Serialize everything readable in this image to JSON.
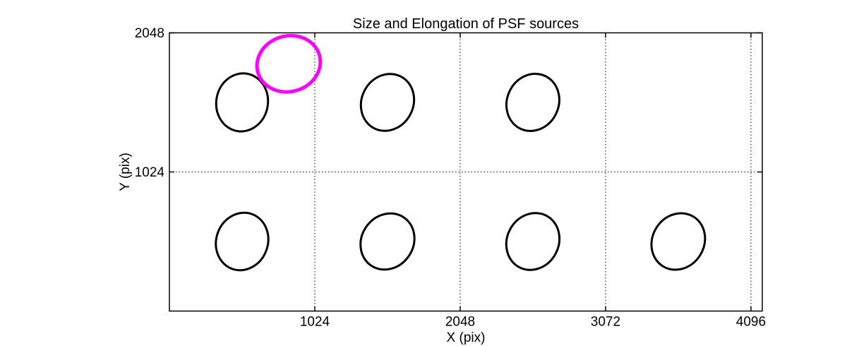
{
  "chart_data": {
    "type": "scatter",
    "marker": "ellipse",
    "title": "Size and Elongation of PSF sources",
    "xlabel": "X (pix)",
    "ylabel": "Y (pix)",
    "xlim": [
      0,
      4176
    ],
    "ylim": [
      0,
      2048
    ],
    "xticks": [
      1024,
      2048,
      3072,
      4096
    ],
    "yticks": [
      1024,
      2048
    ],
    "grid": "dotted",
    "legend": "none",
    "colors": {
      "background": "#ffffff",
      "axes": "#000000",
      "psf_source": "#000000",
      "highlighted_source": "#ff00ff"
    },
    "ellipses": [
      {
        "x": 512,
        "y": 1536,
        "a": 205,
        "b": 190,
        "angle": 80,
        "color": "#000000",
        "lw": 3,
        "role": "psf-source-ellipse"
      },
      {
        "x": 1536,
        "y": 1536,
        "a": 205,
        "b": 190,
        "angle": 62,
        "color": "#000000",
        "lw": 3,
        "role": "psf-source-ellipse"
      },
      {
        "x": 2560,
        "y": 1536,
        "a": 205,
        "b": 190,
        "angle": 65,
        "color": "#000000",
        "lw": 3,
        "role": "psf-source-ellipse"
      },
      {
        "x": 512,
        "y": 512,
        "a": 205,
        "b": 190,
        "angle": 70,
        "color": "#000000",
        "lw": 3,
        "role": "psf-source-ellipse"
      },
      {
        "x": 1536,
        "y": 512,
        "a": 205,
        "b": 190,
        "angle": 55,
        "color": "#000000",
        "lw": 3,
        "role": "psf-source-ellipse"
      },
      {
        "x": 2560,
        "y": 512,
        "a": 205,
        "b": 190,
        "angle": 62,
        "color": "#000000",
        "lw": 3,
        "role": "psf-source-ellipse"
      },
      {
        "x": 3584,
        "y": 512,
        "a": 205,
        "b": 190,
        "angle": 58,
        "color": "#000000",
        "lw": 3,
        "role": "psf-source-ellipse"
      },
      {
        "x": 840,
        "y": 1820,
        "a": 225,
        "b": 205,
        "angle": 15,
        "color": "#ff00ff",
        "lw": 5,
        "role": "highlighted-psf-source-ellipse"
      }
    ]
  }
}
